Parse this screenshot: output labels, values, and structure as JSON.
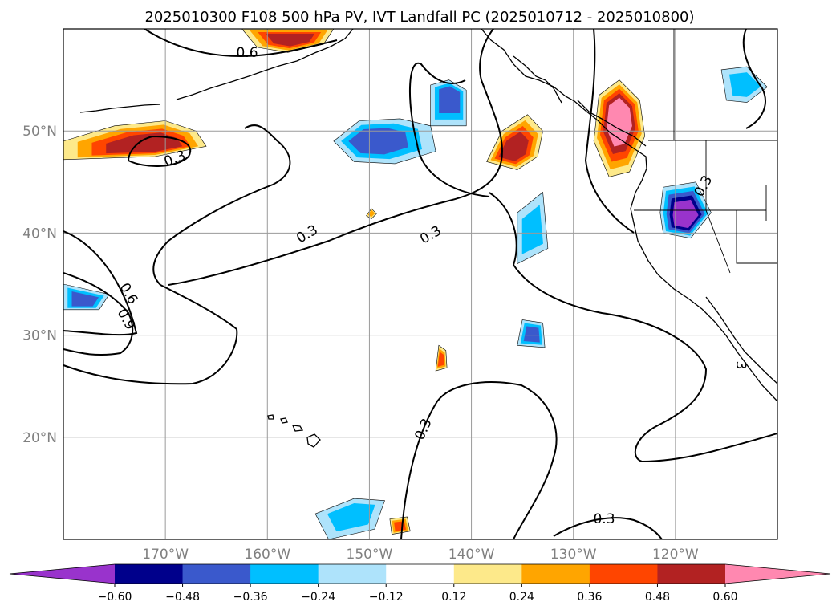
{
  "chart_data": {
    "type": "heatmap",
    "title": "2025010300 F108 500 hPa PV, IVT Landfall PC (2025010712 - 2025010800)",
    "map": {
      "lon_range": [
        -180,
        -110
      ],
      "lat_range": [
        10,
        60
      ],
      "lon_ticks": [
        -170,
        -160,
        -150,
        -140,
        -130,
        -120
      ],
      "lon_tick_labels": [
        "170°W",
        "160°W",
        "150°W",
        "140°W",
        "130°W",
        "120°W"
      ],
      "lat_ticks": [
        20,
        30,
        40,
        50
      ],
      "lat_tick_labels": [
        "20°N",
        "30°N",
        "40°N",
        "50°N"
      ],
      "grid": true
    },
    "colorbar": {
      "orientation": "horizontal",
      "extend": "both",
      "levels": [
        -0.6,
        -0.48,
        -0.36,
        -0.24,
        -0.12,
        0.12,
        0.24,
        0.36,
        0.48,
        0.6
      ],
      "tick_labels": [
        "−0.60",
        "−0.48",
        "−0.36",
        "−0.24",
        "−0.12",
        "0.12",
        "0.24",
        "0.36",
        "0.48",
        "0.60"
      ],
      "colors": [
        "#9933cc",
        "#00008b",
        "#3a59cc",
        "#00bfff",
        "#aee3fb",
        "#ffffff",
        "#fde98a",
        "#ffa500",
        "#ff4500",
        "#b22222",
        "#ff88b0"
      ]
    },
    "filled_regions": [
      {
        "center": [
          -171.0,
          48.5
        ],
        "value": 0.48
      },
      {
        "center": [
          -157.5,
          59.0
        ],
        "value": 0.48
      },
      {
        "center": [
          -136.0,
          48.0
        ],
        "value": 0.48
      },
      {
        "center": [
          -125.5,
          51.5
        ],
        "value": 0.6
      },
      {
        "center": [
          -150.0,
          49.0
        ],
        "value": -0.36
      },
      {
        "center": [
          -142.0,
          53.5
        ],
        "value": -0.36
      },
      {
        "center": [
          -119.0,
          41.5
        ],
        "value": -0.6
      },
      {
        "center": [
          -113.0,
          54.5
        ],
        "value": -0.24
      },
      {
        "center": [
          -178.0,
          33.3
        ],
        "value": -0.36
      },
      {
        "center": [
          -134.0,
          30.0
        ],
        "value": -0.36
      },
      {
        "center": [
          -134.0,
          40.0
        ],
        "value": -0.24
      },
      {
        "center": [
          -143.0,
          27.5
        ],
        "value": 0.36
      },
      {
        "center": [
          -147.0,
          11.2
        ],
        "value": 0.36
      },
      {
        "center": [
          -151.5,
          12.5
        ],
        "value": -0.24
      },
      {
        "center": [
          -149.8,
          42.0
        ],
        "value": 0.24
      }
    ],
    "contour_labels": [
      "0.6",
      "0.3",
      "0.3",
      "0.3",
      "0.6",
      "0.9",
      "0.3",
      "0.3",
      "0.3",
      "3"
    ]
  }
}
